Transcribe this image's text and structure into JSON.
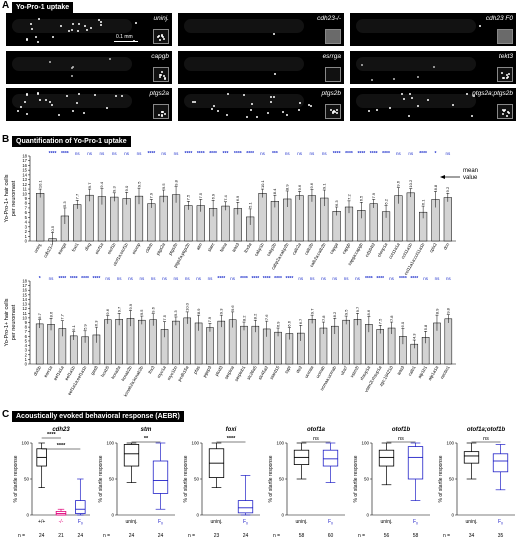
{
  "panelA": {
    "letter": "A",
    "title": "Yo-Pro-1 uptake",
    "scale_label": "0.1 mm",
    "tiles": [
      {
        "label": "uninj.",
        "bright": "high"
      },
      {
        "label": "cdh23-/-",
        "bright": "none"
      },
      {
        "label": "cdh23 F0",
        "bright": "none"
      },
      {
        "label": "capgb",
        "bright": "low"
      },
      {
        "label": "esrrga",
        "bright": "none"
      },
      {
        "label": "tekt3",
        "bright": "low"
      },
      {
        "label": "ptgs2a",
        "bright": "high"
      },
      {
        "label": "ptgs2b",
        "bright": "high"
      },
      {
        "label": "ptgs2a;ptgs2b",
        "bright": "medium"
      }
    ]
  },
  "panelB": {
    "letter": "B",
    "title": "Quantification of Yo-Pro-1 uptake",
    "ylabel_line1": "Yo-Pro-1+ hair cells",
    "ylabel_line2": "per neuromast",
    "mean_label_1": "mean",
    "mean_label_2": "value",
    "yticks": [
      "0",
      "1",
      "2",
      "3",
      "4",
      "5",
      "6",
      "7",
      "8",
      "9",
      "10",
      "11",
      "12",
      "13",
      "14",
      "15",
      "16",
      "17",
      "18"
    ],
    "charts": [
      {
        "type": "bar",
        "categories": [
          "uninj.",
          "cdh23-/-",
          "esrrga",
          "foxi1",
          "dlxg",
          "otof1a",
          "otof1b",
          "otof1a;otof1b",
          "otomp",
          "cldnb",
          "ptgs2a",
          "ptgs2b",
          "ptgs2a;ptgs2b",
          "atm",
          "slarc",
          "feina",
          "tekt3",
          "lbx3a",
          "cabp1b",
          "cabp2b",
          "cabp2a;cabp2b",
          "calb2a",
          "calb2b",
          "calb2a;calb2b",
          "capga",
          "capgb",
          "capga;capgb",
          "cd164l2",
          "chmp1a",
          "col11a1a",
          "col11a1b",
          "col11a1a;col11a1b",
          "cplx2",
          "dcn"
        ],
        "values": [
          10.1,
          0.5,
          5.3,
          7.7,
          9.7,
          9.4,
          9.3,
          9.0,
          9.5,
          7.9,
          9.5,
          9.8,
          7.5,
          7.5,
          6.9,
          7.4,
          6.9,
          5.1,
          10.1,
          8.4,
          8.9,
          9.6,
          9.6,
          9.1,
          6.3,
          7.2,
          6.5,
          7.9,
          6.2,
          9.6,
          10.2,
          6.1,
          8.8,
          9.2
        ],
        "stats": [
          "",
          "****",
          "****",
          "ns",
          "ns",
          "ns",
          "ns",
          "ns",
          "ns",
          "****",
          "ns",
          "ns",
          "****",
          "****",
          "****",
          "***",
          "****",
          "****",
          "ns",
          "***",
          "ns",
          "ns",
          "ns",
          "ns",
          "****",
          "****",
          "****",
          "****",
          "****",
          "ns",
          "ns",
          "****",
          "*",
          "ns"
        ],
        "ylim": [
          0,
          18
        ]
      },
      {
        "type": "bar",
        "categories": [
          "dlx5b",
          "esrr1a",
          "eef1a1a",
          "eef1a1b",
          "eef1a1a;eef1a1b",
          "gas8",
          "hoxb5",
          "kcna2a",
          "kcnab2b",
          "kcnab2a;kcnab2b",
          "lhx3",
          "myo1a",
          "myo1bn",
          "pcdh15a",
          "pfas",
          "pgep3",
          "plod3",
          "serpina",
          "serpinb1",
          "slc26a5",
          "slc45a2",
          "stard15",
          "sypl",
          "tfe2",
          "ucmaa",
          "ucmab",
          "ucmaa;ucmab",
          "uba7",
          "vstm2l",
          "rhsvp1a",
          "vstm2l;rhsvp1a",
          "zgc:194210",
          "tekt3",
          "calb1",
          "atp1b1",
          "atp1a1a",
          "nectin1"
        ],
        "values": [
          8.7,
          8.6,
          7.7,
          6.1,
          5.9,
          6.3,
          9.6,
          9.7,
          9.9,
          9.5,
          9.6,
          7.5,
          9.3,
          10.0,
          8.9,
          7.9,
          9.3,
          9.6,
          8.2,
          8.2,
          7.6,
          6.9,
          6.6,
          6.7,
          9.7,
          7.8,
          8.2,
          9.5,
          9.7,
          8.6,
          7.5,
          7.8,
          6.0,
          4.3,
          5.8,
          8.9,
          9.8
        ],
        "stats": [
          "*",
          "ns",
          "****",
          "****",
          "****",
          "****",
          "ns",
          "ns",
          "ns",
          "ns",
          "ns",
          "ns",
          "ns",
          "ns",
          "ns",
          "ns",
          "****",
          "ns",
          "****",
          "****",
          "****",
          "****",
          "****",
          "ns",
          "ns",
          "ns",
          "ns",
          "ns",
          "ns",
          "****",
          "****",
          "ns",
          "****",
          "****",
          "ns",
          "ns",
          "ns"
        ],
        "ylim": [
          0,
          18
        ]
      }
    ]
  },
  "panelC": {
    "letter": "C",
    "title": "Acoustically evoked behavioral response (AEBR)",
    "ylabel": "% of startle response",
    "n_label": "n =",
    "chart_data": [
      {
        "type": "box",
        "title": "cdh23",
        "groups": [
          "+/+",
          "-/-",
          "F0"
        ],
        "n": [
          "24",
          "21",
          "24"
        ],
        "colors": [
          "#000000",
          "#e0007a",
          "#2222c8"
        ],
        "boxes": [
          [
            38,
            68,
            80,
            92,
            100
          ],
          [
            0,
            0,
            2,
            5,
            8
          ],
          [
            0,
            2,
            8,
            20,
            50
          ]
        ],
        "sig": [
          [
            "****",
            0,
            1
          ],
          [
            "****",
            0,
            2
          ]
        ]
      },
      {
        "type": "box",
        "title": "stm",
        "groups": [
          "uninj.",
          "F0"
        ],
        "n": [
          "24",
          "24"
        ],
        "colors": [
          "#000000",
          "#2222c8"
        ],
        "boxes": [
          [
            45,
            68,
            85,
            98,
            100
          ],
          [
            8,
            30,
            48,
            75,
            100
          ]
        ],
        "sig": [
          [
            "**",
            0,
            1
          ]
        ]
      },
      {
        "type": "box",
        "title": "foxi",
        "groups": [
          "uninj.",
          "F0"
        ],
        "n": [
          "23",
          "24"
        ],
        "colors": [
          "#000000",
          "#2222c8"
        ],
        "boxes": [
          [
            38,
            52,
            72,
            92,
            100
          ],
          [
            0,
            3,
            10,
            20,
            55
          ]
        ],
        "sig": [
          [
            "****",
            0,
            1
          ]
        ]
      },
      {
        "type": "box",
        "title": "otof1a",
        "groups": [
          "uninj.",
          "F0"
        ],
        "n": [
          "58",
          "60"
        ],
        "colors": [
          "#000000",
          "#2222c8"
        ],
        "boxes": [
          [
            50,
            70,
            80,
            90,
            100
          ],
          [
            45,
            68,
            78,
            90,
            100
          ]
        ],
        "sig": [
          [
            "ns",
            0,
            1
          ]
        ]
      },
      {
        "type": "box",
        "title": "otof1b",
        "groups": [
          "uninj.",
          "F0"
        ],
        "n": [
          "56",
          "58"
        ],
        "colors": [
          "#000000",
          "#2222c8"
        ],
        "boxes": [
          [
            42,
            68,
            80,
            90,
            100
          ],
          [
            20,
            50,
            80,
            95,
            100
          ]
        ],
        "sig": [
          [
            "ns",
            0,
            1
          ]
        ]
      },
      {
        "type": "box",
        "title": "otof1a;otof1b",
        "groups": [
          "uninj.",
          "F0"
        ],
        "n": [
          "34",
          "35"
        ],
        "colors": [
          "#000000",
          "#2222c8"
        ],
        "boxes": [
          [
            50,
            72,
            82,
            88,
            100
          ],
          [
            35,
            60,
            75,
            85,
            98
          ]
        ],
        "sig": [
          [
            "ns",
            0,
            1
          ]
        ]
      }
    ],
    "yticks": [
      "0",
      "50",
      "100"
    ]
  }
}
